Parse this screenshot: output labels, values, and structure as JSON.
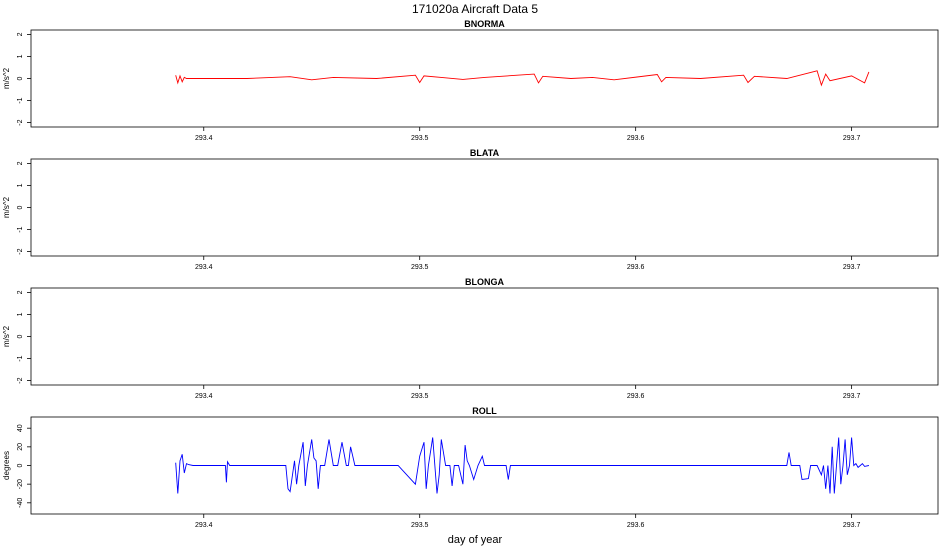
{
  "figure": {
    "title": "171020a   Aircraft Data 5",
    "xlabel": "day of year"
  },
  "chart_data": [
    {
      "type": "line",
      "title": "BNORMA",
      "ylabel": "m/s^2",
      "xlim": [
        293.32,
        293.74
      ],
      "ylim": [
        -2.2,
        2.2
      ],
      "xticks": [
        293.4,
        293.5,
        293.6,
        293.7
      ],
      "xtick_labels": [
        "293.4",
        "293.5",
        "293.6",
        "293.7"
      ],
      "yticks": [
        -2,
        -1,
        0,
        1,
        2
      ],
      "ytick_labels": [
        "-2",
        "-1",
        "0",
        "1",
        "2"
      ],
      "series": [
        {
          "color": "#ff0000",
          "x": [
            293.387,
            293.388,
            293.389,
            293.39,
            293.391,
            293.392,
            293.4,
            293.42,
            293.44,
            293.45,
            293.46,
            293.48,
            293.498,
            293.5,
            293.502,
            293.51,
            293.52,
            293.53,
            293.553,
            293.555,
            293.557,
            293.57,
            293.58,
            293.59,
            293.61,
            293.612,
            293.614,
            293.63,
            293.65,
            293.652,
            293.655,
            293.67,
            293.684,
            293.686,
            293.688,
            293.69,
            293.7,
            293.706,
            293.708
          ],
          "y": [
            0.15,
            -0.2,
            0.12,
            -0.15,
            0.05,
            0,
            0,
            0,
            0.08,
            -0.06,
            0.05,
            0,
            0.15,
            -0.18,
            0.12,
            0.05,
            -0.04,
            0.05,
            0.2,
            -0.2,
            0.1,
            0,
            0.05,
            -0.06,
            0.18,
            -0.15,
            0.05,
            0,
            0.15,
            -0.18,
            0.1,
            0,
            0.35,
            -0.3,
            0.2,
            -0.1,
            0.12,
            -0.2,
            0.3
          ]
        }
      ]
    },
    {
      "type": "line",
      "title": "BLATA",
      "ylabel": "m/s^2",
      "xlim": [
        293.32,
        293.74
      ],
      "ylim": [
        -2.2,
        2.2
      ],
      "xticks": [
        293.4,
        293.5,
        293.6,
        293.7
      ],
      "xtick_labels": [
        "293.4",
        "293.5",
        "293.6",
        "293.7"
      ],
      "yticks": [
        -2,
        -1,
        0,
        1,
        2
      ],
      "ytick_labels": [
        "-2",
        "-1",
        "0",
        "1",
        "2"
      ],
      "series": []
    },
    {
      "type": "line",
      "title": "BLONGA",
      "ylabel": "m/s^2",
      "xlim": [
        293.32,
        293.74
      ],
      "ylim": [
        -2.2,
        2.2
      ],
      "xticks": [
        293.4,
        293.5,
        293.6,
        293.7
      ],
      "xtick_labels": [
        "293.4",
        "293.5",
        "293.6",
        "293.7"
      ],
      "yticks": [
        -2,
        -1,
        0,
        1,
        2
      ],
      "ytick_labels": [
        "-2",
        "-1",
        "0",
        "1",
        "2"
      ],
      "series": []
    },
    {
      "type": "line",
      "title": "ROLL",
      "ylabel": "degrees",
      "xlim": [
        293.32,
        293.74
      ],
      "ylim": [
        -52,
        52
      ],
      "xticks": [
        293.4,
        293.5,
        293.6,
        293.7
      ],
      "xtick_labels": [
        "293.4",
        "293.5",
        "293.6",
        "293.7"
      ],
      "yticks": [
        -40,
        -20,
        0,
        20,
        40
      ],
      "ytick_labels": [
        "-40",
        "-20",
        "0",
        "20",
        "40"
      ],
      "series": [
        {
          "color": "#0000ff",
          "x": [
            293.387,
            293.388,
            293.389,
            293.39,
            293.391,
            293.392,
            293.393,
            293.395,
            293.4,
            293.41,
            293.4105,
            293.411,
            293.412,
            293.42,
            293.43,
            293.438,
            293.439,
            293.44,
            293.442,
            293.443,
            293.444,
            293.446,
            293.447,
            293.448,
            293.45,
            293.451,
            293.452,
            293.453,
            293.454,
            293.456,
            293.458,
            293.46,
            293.462,
            293.464,
            293.466,
            293.467,
            293.468,
            293.47,
            293.48,
            293.49,
            293.498,
            293.5,
            293.502,
            293.503,
            293.504,
            293.506,
            293.508,
            293.509,
            293.51,
            293.512,
            293.514,
            293.515,
            293.516,
            293.518,
            293.52,
            293.521,
            293.522,
            293.523,
            293.525,
            293.527,
            293.529,
            293.53,
            293.54,
            293.541,
            293.542,
            293.56,
            293.58,
            293.6,
            293.62,
            293.64,
            293.66,
            293.67,
            293.671,
            293.672,
            293.676,
            293.677,
            293.68,
            293.681,
            293.684,
            293.686,
            293.687,
            293.688,
            293.689,
            293.69,
            293.691,
            293.692,
            293.693,
            293.694,
            293.695,
            293.696,
            293.697,
            293.698,
            293.699,
            293.7,
            293.701,
            293.702,
            293.703,
            293.704,
            293.705,
            293.706,
            293.708
          ],
          "y": [
            3,
            -30,
            5,
            12,
            -8,
            2,
            1,
            0,
            0,
            0,
            -18,
            4,
            0,
            0,
            0,
            0,
            -25,
            -28,
            5,
            -20,
            0,
            25,
            -22,
            0,
            28,
            8,
            5,
            -25,
            0,
            0,
            28,
            0,
            0,
            25,
            0,
            0,
            20,
            0,
            0,
            0,
            -20,
            10,
            25,
            -25,
            0,
            30,
            -30,
            -10,
            28,
            0,
            0,
            -22,
            0,
            0,
            -20,
            22,
            5,
            0,
            -15,
            0,
            10,
            0,
            0,
            -15,
            0,
            0,
            0,
            0,
            0,
            0,
            0,
            0,
            14,
            0,
            0,
            -15,
            -14,
            0,
            0,
            -10,
            0,
            -25,
            0,
            -30,
            20,
            -30,
            0,
            30,
            -20,
            0,
            28,
            -10,
            0,
            30,
            0,
            2,
            -2,
            0,
            2,
            -1,
            0
          ]
        }
      ]
    }
  ]
}
